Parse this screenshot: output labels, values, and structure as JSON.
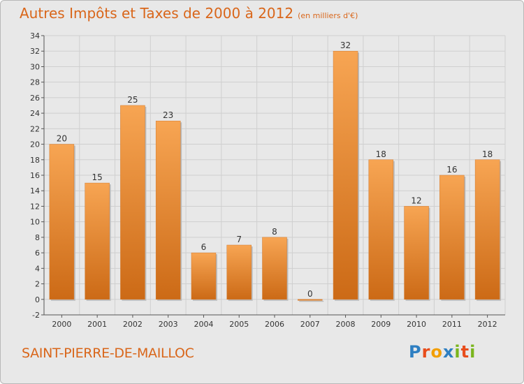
{
  "title": "Autres Impôts et Taxes de 2000 à 2012",
  "unit": "(en milliers d'€)",
  "place": "SAINT-PIERRE-DE-MAILLOC",
  "logo": {
    "letters": [
      "P",
      "r",
      "o",
      "x",
      "i",
      "t",
      "i"
    ],
    "colors": [
      "#2e7fc2",
      "#e84d1c",
      "#f29f05",
      "#2e7fc2",
      "#7ab51d",
      "#e84d1c",
      "#7ab51d"
    ]
  },
  "colors": {
    "bar_top": "#f7a553",
    "bar_bottom": "#cc6a16",
    "title": "#d9661a"
  },
  "chart_data": {
    "type": "bar",
    "categories": [
      "2000",
      "2001",
      "2002",
      "2003",
      "2004",
      "2005",
      "2006",
      "2007",
      "2008",
      "2009",
      "2010",
      "2011",
      "2012"
    ],
    "values": [
      20,
      15,
      25,
      23,
      6,
      7,
      8,
      0,
      32,
      18,
      12,
      16,
      18
    ],
    "ylim": [
      -2,
      34
    ],
    "yticks": [
      -2,
      0,
      2,
      4,
      6,
      8,
      10,
      12,
      14,
      16,
      18,
      20,
      22,
      24,
      26,
      28,
      30,
      32,
      34
    ],
    "grid": true
  }
}
